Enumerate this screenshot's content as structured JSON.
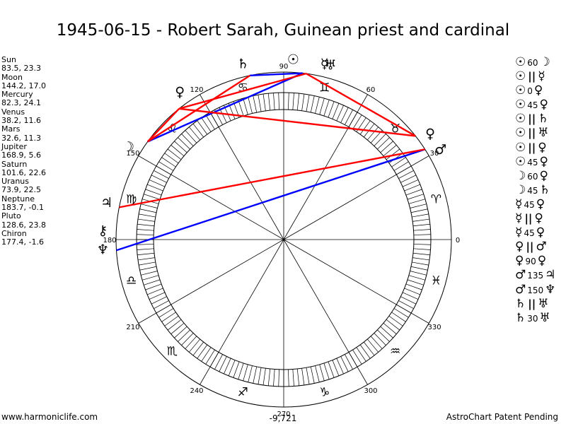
{
  "title": "1945-06-15 - Robert Sarah, Guinean priest and cardinal",
  "planets": [
    {
      "name": "Sun",
      "values": "83.5, 23.3",
      "lon": 83.5,
      "glyph": "☉",
      "label_lon": 87
    },
    {
      "name": "Moon",
      "values": "144.2, 17.0",
      "lon": 144.2,
      "glyph": "☽",
      "label_lon": 149
    },
    {
      "name": "Mercury",
      "values": "82.3, 24.1",
      "lon": 82.3,
      "glyph": "☿",
      "label_lon": 77
    },
    {
      "name": "Venus",
      "values": "38.2, 11.6",
      "lon": 38.2,
      "glyph": "♀",
      "label_lon": 36
    },
    {
      "name": "Mars",
      "values": "32.6, 11.3",
      "lon": 32.6,
      "glyph": "♂",
      "label_lon": 30
    },
    {
      "name": "Jupiter",
      "values": "168.9, 5.6",
      "lon": 168.9,
      "glyph": "♃",
      "label_lon": 168
    },
    {
      "name": "Saturn",
      "values": "101.6, 22.6",
      "lon": 101.6,
      "glyph": "♄",
      "label_lon": 103
    },
    {
      "name": "Uranus",
      "values": "73.9, 22.5",
      "lon": 73.9,
      "glyph": "♅",
      "label_lon": 75
    },
    {
      "name": "Neptune",
      "values": "183.7, -0.1",
      "lon": 183.7,
      "glyph": "♆",
      "label_lon": 183
    },
    {
      "name": "Pluto",
      "values": "128.6, 23.8",
      "lon": 128.6,
      "glyph": "♀",
      "label_lon": 125
    },
    {
      "name": "Chiron",
      "values": "177.4, -1.6",
      "lon": 177.4,
      "glyph": "⚷",
      "label_lon": 177
    }
  ],
  "sign_glyphs": [
    "♈",
    "♉",
    "♊",
    "♋",
    "♌",
    "♍",
    "♎",
    "♏",
    "♐",
    "♑",
    "♒",
    "♓"
  ],
  "degree_labels": [
    "0",
    "30",
    "60",
    "90",
    "120",
    "150",
    "180",
    "210",
    "240",
    "270",
    "300",
    "330"
  ],
  "center_value": "-9,721",
  "aspect_list": [
    {
      "g1": "☉",
      "asp": "60",
      "g2": "☽"
    },
    {
      "g1": "☉",
      "asp": "||",
      "g2": "☿"
    },
    {
      "g1": "☉",
      "asp": "0",
      "g2": "♀"
    },
    {
      "g1": "☉",
      "asp": "45",
      "g2": "♀"
    },
    {
      "g1": "☉",
      "asp": "||",
      "g2": "♄"
    },
    {
      "g1": "☉",
      "asp": "||",
      "g2": "♅"
    },
    {
      "g1": "☉",
      "asp": "||",
      "g2": "♀"
    },
    {
      "g1": "☉",
      "asp": "45",
      "g2": "♀"
    },
    {
      "g1": "☽",
      "asp": "60",
      "g2": "♀"
    },
    {
      "g1": "☽",
      "asp": "45",
      "g2": "♄"
    },
    {
      "g1": "☿",
      "asp": "45",
      "g2": "♀"
    },
    {
      "g1": "☿",
      "asp": "||",
      "g2": "♀"
    },
    {
      "g1": "☿",
      "asp": "45",
      "g2": "♀"
    },
    {
      "g1": "♀",
      "asp": "||",
      "g2": "♂"
    },
    {
      "g1": "♀",
      "asp": "90",
      "g2": "♀"
    },
    {
      "g1": "♂",
      "asp": "135",
      "g2": "♃"
    },
    {
      "g1": "♂",
      "asp": "150",
      "g2": "♆"
    },
    {
      "g1": "♄",
      "asp": "||",
      "g2": "♅"
    },
    {
      "g1": "♄",
      "asp": "30",
      "g2": "♅"
    }
  ],
  "aspect_lines": [
    {
      "from": 83.5,
      "to": 144.2,
      "color": "#0000ff"
    },
    {
      "from": 101.6,
      "to": 83.5,
      "color": "#0000ff"
    },
    {
      "from": 32.6,
      "to": 183.7,
      "color": "#0000ff"
    },
    {
      "from": 144.2,
      "to": 128.6,
      "color": "#ff0000"
    },
    {
      "from": 144.2,
      "to": 101.6,
      "color": "#ff0000"
    },
    {
      "from": 128.6,
      "to": 82.3,
      "color": "#ff0000"
    },
    {
      "from": 128.6,
      "to": 38.2,
      "color": "#ff0000"
    },
    {
      "from": 82.3,
      "to": 38.2,
      "color": "#ff0000"
    },
    {
      "from": 32.6,
      "to": 168.9,
      "color": "#ff0000"
    }
  ],
  "colors": {
    "red": "#ff0000",
    "blue": "#0000ff"
  },
  "footer_left": "www.harmoniclife.com",
  "footer_right": "AstroChart Patent Pending"
}
